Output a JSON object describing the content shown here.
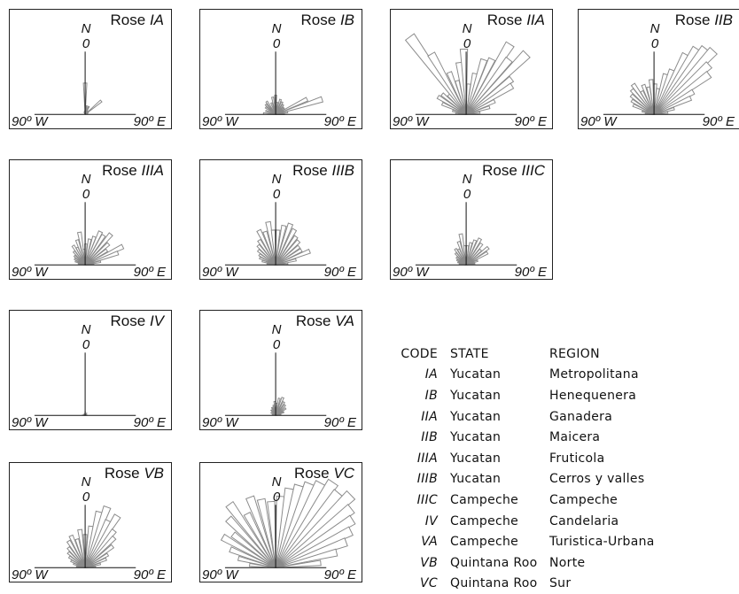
{
  "axis_labels": {
    "north": "N",
    "zero": "0",
    "west": "90º W",
    "east": "90º E"
  },
  "roses": [
    {
      "prefix": "Rose",
      "code": "IA",
      "petals": [
        [
          -28,
          2
        ],
        [
          -20,
          3
        ],
        [
          -12,
          3
        ],
        [
          -5,
          4
        ],
        [
          0,
          36
        ],
        [
          10,
          10
        ],
        [
          25,
          10
        ],
        [
          40,
          5
        ],
        [
          50,
          24
        ],
        [
          60,
          4
        ],
        [
          72,
          3
        ]
      ]
    },
    {
      "prefix": "Rose",
      "code": "IB",
      "petals": [
        [
          -85,
          14
        ],
        [
          -70,
          12
        ],
        [
          -55,
          14
        ],
        [
          -45,
          16
        ],
        [
          -35,
          18
        ],
        [
          -20,
          14
        ],
        [
          -10,
          20
        ],
        [
          0,
          22
        ],
        [
          8,
          14
        ],
        [
          18,
          18
        ],
        [
          28,
          16
        ],
        [
          38,
          14
        ],
        [
          48,
          12
        ],
        [
          55,
          12
        ],
        [
          64,
          40
        ],
        [
          72,
          56
        ],
        [
          80,
          14
        ],
        [
          88,
          10
        ]
      ]
    },
    {
      "prefix": "Rose",
      "code": "IIA",
      "petals": [
        [
          -85,
          12
        ],
        [
          -75,
          16
        ],
        [
          -66,
          30
        ],
        [
          -58,
          38
        ],
        [
          -50,
          36
        ],
        [
          -42,
          30
        ],
        [
          -36,
          110
        ],
        [
          -30,
          80
        ],
        [
          -22,
          52
        ],
        [
          -15,
          40
        ],
        [
          -8,
          60
        ],
        [
          -2,
          75
        ],
        [
          5,
          35
        ],
        [
          12,
          48
        ],
        [
          18,
          66
        ],
        [
          25,
          70
        ],
        [
          32,
          95
        ],
        [
          38,
          80
        ],
        [
          45,
          98
        ],
        [
          52,
          66
        ],
        [
          58,
          62
        ],
        [
          65,
          36
        ],
        [
          73,
          28
        ],
        [
          82,
          16
        ]
      ]
    },
    {
      "prefix": "Rose",
      "code": "IIB",
      "petals": [
        [
          -85,
          10
        ],
        [
          -75,
          14
        ],
        [
          -66,
          26
        ],
        [
          -58,
          30
        ],
        [
          -50,
          34
        ],
        [
          -42,
          38
        ],
        [
          -35,
          42
        ],
        [
          -28,
          30
        ],
        [
          -20,
          36
        ],
        [
          -12,
          32
        ],
        [
          -5,
          40
        ],
        [
          2,
          35
        ],
        [
          9,
          30
        ],
        [
          16,
          48
        ],
        [
          22,
          55
        ],
        [
          28,
          78
        ],
        [
          33,
          90
        ],
        [
          38,
          96
        ],
        [
          43,
          100
        ],
        [
          48,
          85
        ],
        [
          54,
          78
        ],
        [
          60,
          52
        ],
        [
          66,
          46
        ],
        [
          74,
          24
        ],
        [
          82,
          16
        ]
      ]
    },
    {
      "prefix": "Rose",
      "code": "IIIA",
      "petals": [
        [
          -80,
          8
        ],
        [
          -70,
          12
        ],
        [
          -60,
          14
        ],
        [
          -50,
          16
        ],
        [
          -40,
          20
        ],
        [
          -32,
          26
        ],
        [
          -25,
          22
        ],
        [
          -18,
          30
        ],
        [
          -10,
          38
        ],
        [
          -4,
          18
        ],
        [
          2,
          24
        ],
        [
          10,
          30
        ],
        [
          18,
          34
        ],
        [
          25,
          42
        ],
        [
          32,
          40
        ],
        [
          40,
          46
        ],
        [
          48,
          36
        ],
        [
          56,
          30
        ],
        [
          64,
          48
        ],
        [
          70,
          40
        ],
        [
          78,
          18
        ],
        [
          86,
          10
        ]
      ]
    },
    {
      "prefix": "Rose",
      "code": "IIIB",
      "petals": [
        [
          -82,
          10
        ],
        [
          -74,
          16
        ],
        [
          -66,
          20
        ],
        [
          -58,
          22
        ],
        [
          -50,
          26
        ],
        [
          -42,
          30
        ],
        [
          -34,
          34
        ],
        [
          -26,
          44
        ],
        [
          -18,
          40
        ],
        [
          -10,
          50
        ],
        [
          -4,
          40
        ],
        [
          4,
          40
        ],
        [
          12,
          46
        ],
        [
          20,
          50
        ],
        [
          28,
          46
        ],
        [
          36,
          40
        ],
        [
          44,
          38
        ],
        [
          52,
          34
        ],
        [
          60,
          34
        ],
        [
          68,
          42
        ],
        [
          76,
          24
        ],
        [
          84,
          14
        ]
      ]
    },
    {
      "prefix": "Rose",
      "code": "IIIC",
      "petals": [
        [
          -82,
          8
        ],
        [
          -72,
          10
        ],
        [
          -62,
          12
        ],
        [
          -52,
          14
        ],
        [
          -42,
          18
        ],
        [
          -34,
          22
        ],
        [
          -26,
          20
        ],
        [
          -18,
          28
        ],
        [
          -10,
          36
        ],
        [
          -4,
          22
        ],
        [
          4,
          22
        ],
        [
          12,
          26
        ],
        [
          20,
          30
        ],
        [
          28,
          34
        ],
        [
          36,
          30
        ],
        [
          44,
          24
        ],
        [
          52,
          32
        ],
        [
          60,
          28
        ],
        [
          70,
          14
        ],
        [
          82,
          10
        ]
      ]
    },
    {
      "prefix": "Rose",
      "code": "IV",
      "petals": [
        [
          -85,
          3
        ],
        [
          -70,
          2
        ],
        [
          -30,
          2
        ],
        [
          0,
          4
        ],
        [
          35,
          3
        ],
        [
          60,
          2
        ],
        [
          85,
          2
        ]
      ]
    },
    {
      "prefix": "Rose",
      "code": "VA",
      "petals": [
        [
          -80,
          4
        ],
        [
          -60,
          6
        ],
        [
          -40,
          8
        ],
        [
          -25,
          10
        ],
        [
          -12,
          12
        ],
        [
          -4,
          16
        ],
        [
          4,
          14
        ],
        [
          12,
          20
        ],
        [
          22,
          22
        ],
        [
          32,
          18
        ],
        [
          42,
          16
        ],
        [
          55,
          14
        ],
        [
          68,
          10
        ],
        [
          82,
          6
        ]
      ]
    },
    {
      "prefix": "Rose",
      "code": "VB",
      "petals": [
        [
          -82,
          10
        ],
        [
          -72,
          14
        ],
        [
          -64,
          18
        ],
        [
          -56,
          22
        ],
        [
          -48,
          26
        ],
        [
          -40,
          30
        ],
        [
          -32,
          36
        ],
        [
          -24,
          40
        ],
        [
          -16,
          34
        ],
        [
          -8,
          44
        ],
        [
          0,
          38
        ],
        [
          8,
          48
        ],
        [
          14,
          66
        ],
        [
          20,
          74
        ],
        [
          26,
          60
        ],
        [
          32,
          70
        ],
        [
          38,
          54
        ],
        [
          44,
          48
        ],
        [
          52,
          40
        ],
        [
          60,
          30
        ],
        [
          68,
          26
        ],
        [
          76,
          18
        ],
        [
          84,
          12
        ]
      ]
    },
    {
      "prefix": "Rose",
      "code": "VC",
      "petals": [
        [
          -84,
          30
        ],
        [
          -76,
          44
        ],
        [
          -68,
          56
        ],
        [
          -60,
          70
        ],
        [
          -52,
          62
        ],
        [
          -44,
          78
        ],
        [
          -36,
          90
        ],
        [
          -28,
          70
        ],
        [
          -20,
          86
        ],
        [
          -12,
          80
        ],
        [
          -4,
          76
        ],
        [
          4,
          82
        ],
        [
          10,
          92
        ],
        [
          16,
          98
        ],
        [
          22,
          104
        ],
        [
          28,
          110
        ],
        [
          34,
          118
        ],
        [
          40,
          112
        ],
        [
          46,
          120
        ],
        [
          52,
          110
        ],
        [
          58,
          104
        ],
        [
          64,
          96
        ],
        [
          70,
          86
        ],
        [
          76,
          72
        ],
        [
          84,
          52
        ]
      ]
    }
  ],
  "legend": {
    "headers": {
      "code": "CODE",
      "state": "STATE",
      "region": "REGION"
    },
    "rows": [
      {
        "code": "IA",
        "state": "Yucatan",
        "region": "Metropolitana"
      },
      {
        "code": "IB",
        "state": "Yucatan",
        "region": "Henequenera"
      },
      {
        "code": "IIA",
        "state": "Yucatan",
        "region": "Ganadera"
      },
      {
        "code": "IIB",
        "state": "Yucatan",
        "region": "Maicera"
      },
      {
        "code": "IIIA",
        "state": "Yucatan",
        "region": "Fruticola"
      },
      {
        "code": "IIIB",
        "state": "Yucatan",
        "region": "Cerros y valles"
      },
      {
        "code": "IIIC",
        "state": "Campeche",
        "region": "Campeche"
      },
      {
        "code": "IV",
        "state": "Campeche",
        "region": "Candelaria"
      },
      {
        "code": "VA",
        "state": "Campeche",
        "region": "Turistica-Urbana"
      },
      {
        "code": "VB",
        "state": "Quintana Roo",
        "region": "Norte"
      },
      {
        "code": "VC",
        "state": "Quintana Roo",
        "region": "Sur"
      }
    ]
  },
  "colors": {
    "petal_fill": "#ffffff",
    "petal_stroke": "#8a8a8a",
    "axis": "#111111"
  }
}
